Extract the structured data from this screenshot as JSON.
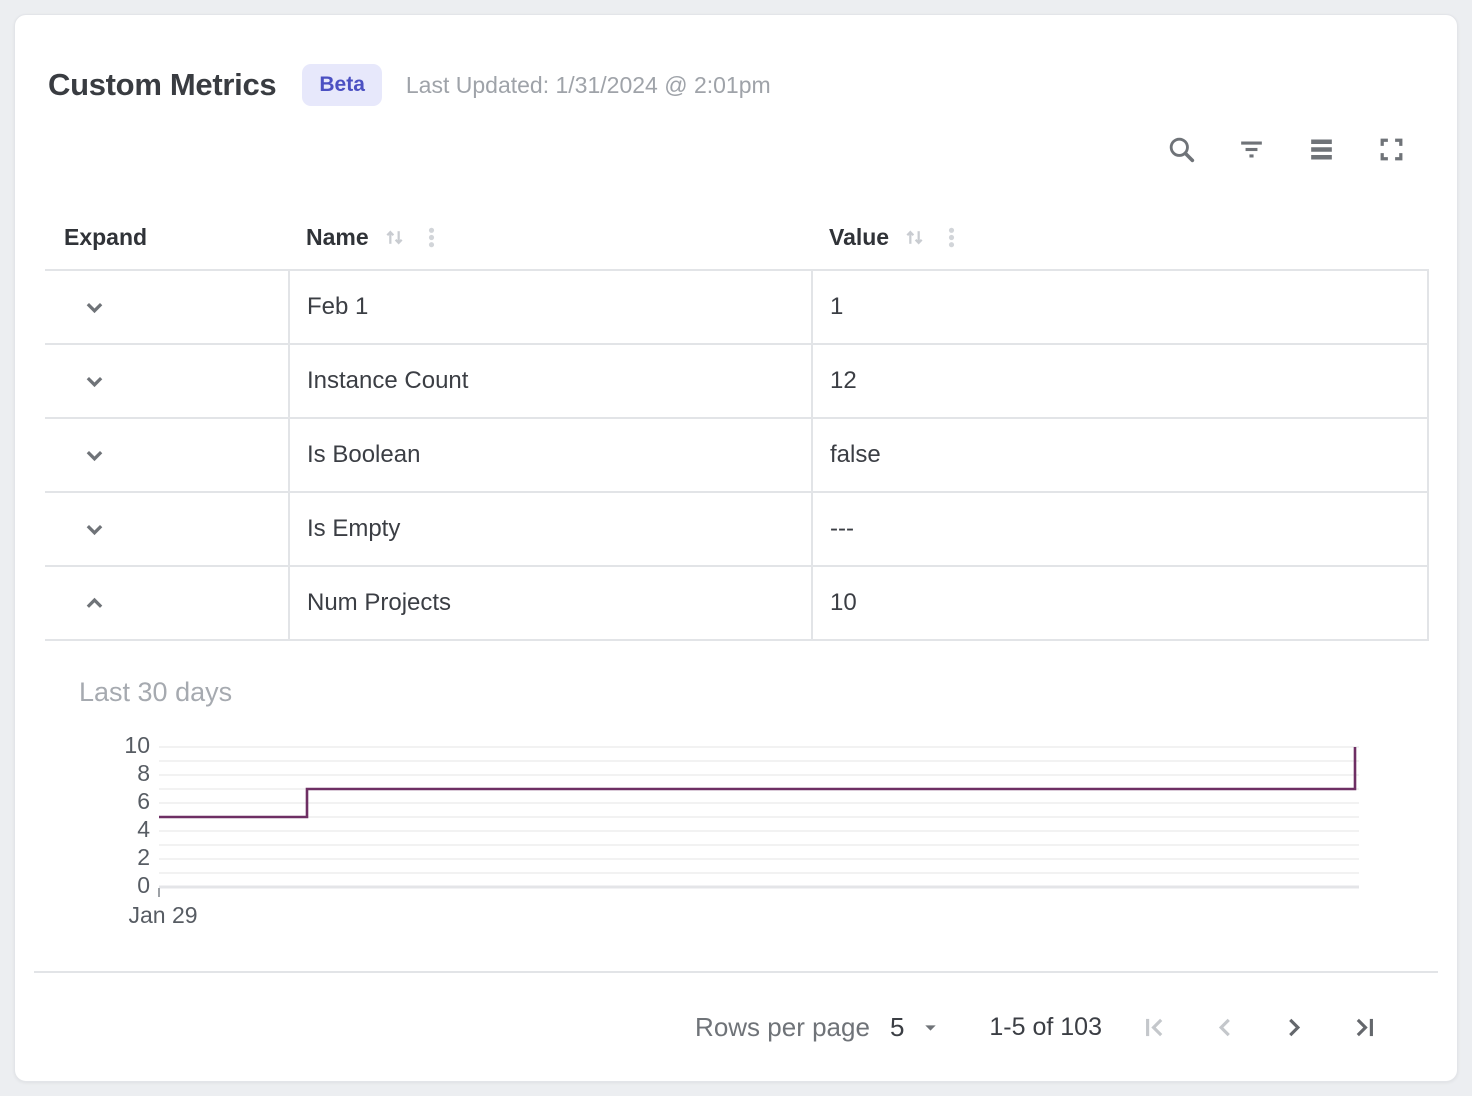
{
  "header": {
    "title": "Custom Metrics",
    "badge": "Beta",
    "last_updated": "Last Updated: 1/31/2024 @ 2:01pm"
  },
  "toolbar": {
    "icons": [
      "search-icon",
      "filter-icon",
      "density-icon",
      "fullscreen-icon"
    ]
  },
  "table": {
    "columns": [
      "Expand",
      "Name",
      "Value"
    ],
    "rows": [
      {
        "name": "Feb 1",
        "value": "1",
        "expanded": false
      },
      {
        "name": "Instance Count",
        "value": "12",
        "expanded": false
      },
      {
        "name": "Is Boolean",
        "value": "false",
        "expanded": false
      },
      {
        "name": "Is Empty",
        "value": "---",
        "expanded": false
      },
      {
        "name": "Num Projects",
        "value": "10",
        "expanded": true
      }
    ]
  },
  "chart_data": {
    "type": "line",
    "title": "Last 30 days",
    "series": [
      {
        "name": "Num Projects",
        "points": [
          [
            0,
            5
          ],
          [
            3.7,
            5
          ],
          [
            3.7,
            7
          ],
          [
            29.9,
            7
          ],
          [
            29.9,
            10
          ]
        ]
      }
    ],
    "xlim": [
      0,
      30
    ],
    "ylim": [
      0,
      10
    ],
    "y_ticks": [
      0,
      2,
      4,
      6,
      8,
      10
    ],
    "y_gridline_step": 1,
    "x_tick_labels": [
      "Jan 29"
    ],
    "grid": true,
    "legend": false,
    "line_color": "#6e2f64"
  },
  "pagination": {
    "rows_per_page_label": "Rows per page",
    "rows_per_page_value": "5",
    "range_label": "1-5 of 103"
  },
  "colors": {
    "badge_bg": "#e7e8fb",
    "badge_text": "#4b50c2",
    "chart_line": "#6e2f64",
    "table_border": "#e2e4e7"
  }
}
